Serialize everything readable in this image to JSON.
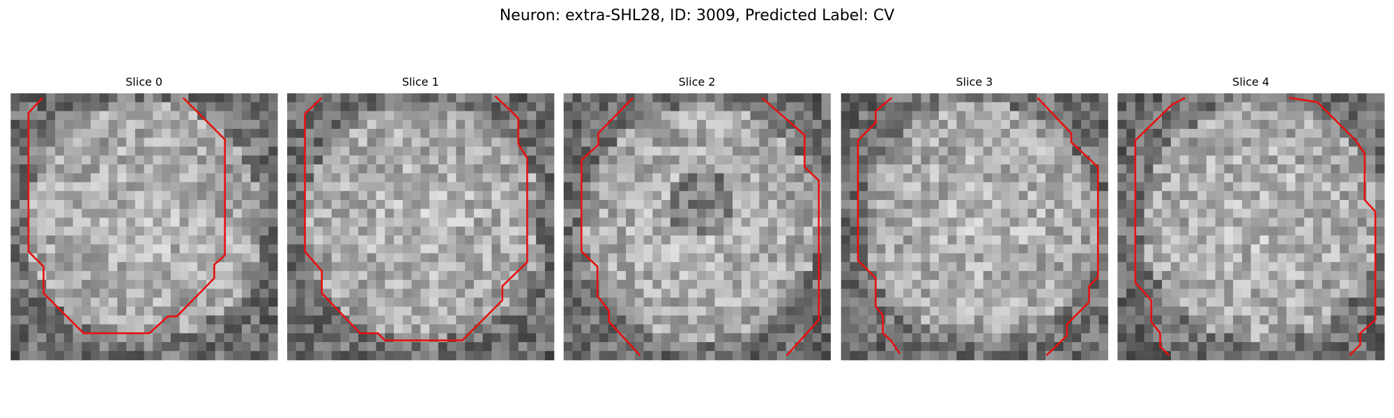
{
  "title": "Neuron: extra-SHL28, ID: 3009, Predicted Label: CV",
  "panels": [
    {
      "title": "Slice 0"
    },
    {
      "title": "Slice 1"
    },
    {
      "title": "Slice 2"
    },
    {
      "title": "Slice 3"
    },
    {
      "title": "Slice 4"
    }
  ]
}
